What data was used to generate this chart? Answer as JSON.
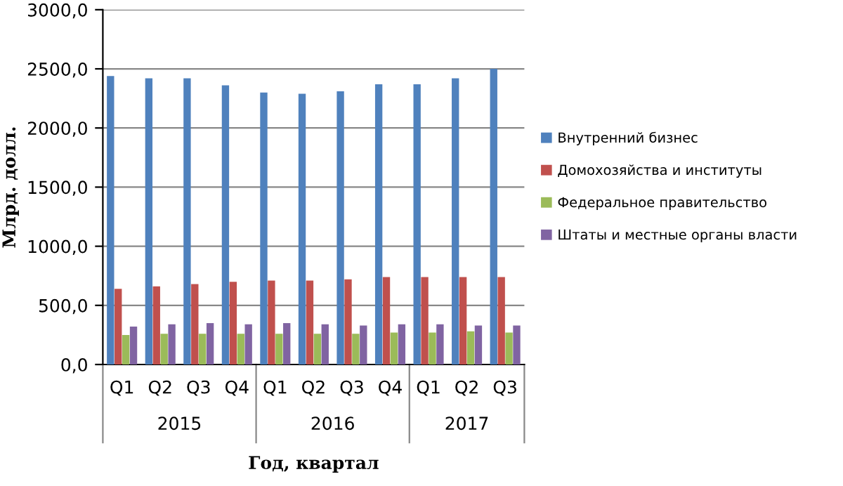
{
  "chart_data": {
    "type": "bar",
    "xlabel": "Год, квартал",
    "ylabel": "Млрд. долл.",
    "categories": [
      "Q1",
      "Q2",
      "Q3",
      "Q4",
      "Q1",
      "Q2",
      "Q3",
      "Q4",
      "Q1",
      "Q2",
      "Q3"
    ],
    "annotations": [
      "2015",
      "2016",
      "2017"
    ],
    "series": [
      {
        "name": "Внутренний бизнес",
        "color": "#4f81bd",
        "values": [
          2440,
          2420,
          2420,
          2360,
          2300,
          2290,
          2310,
          2370,
          2370,
          2420,
          2500
        ]
      },
      {
        "name": "Домохозяйства и институты",
        "color": "#c0504d",
        "values": [
          640,
          660,
          680,
          700,
          710,
          710,
          720,
          740,
          740,
          740,
          740
        ]
      },
      {
        "name": "Федеральное правительство",
        "color": "#9bbb59",
        "values": [
          250,
          260,
          260,
          260,
          260,
          260,
          260,
          270,
          270,
          280,
          270
        ]
      },
      {
        "name": "Штаты и местные органы власти",
        "color": "#8064a2",
        "values": [
          320,
          340,
          350,
          340,
          350,
          340,
          330,
          340,
          340,
          330,
          330
        ]
      }
    ],
    "ylim": [
      0,
      3000
    ],
    "yticks": [
      {
        "value": 0,
        "label": "0,0"
      },
      {
        "value": 500,
        "label": "500,0"
      },
      {
        "value": 1000,
        "label": "1000,0"
      },
      {
        "value": 1500,
        "label": "1500,0"
      },
      {
        "value": 2000,
        "label": "2000,0"
      },
      {
        "value": 2500,
        "label": "2500,0"
      },
      {
        "value": 3000,
        "label": "3000,0"
      }
    ],
    "grid": "y",
    "legend": "right"
  }
}
